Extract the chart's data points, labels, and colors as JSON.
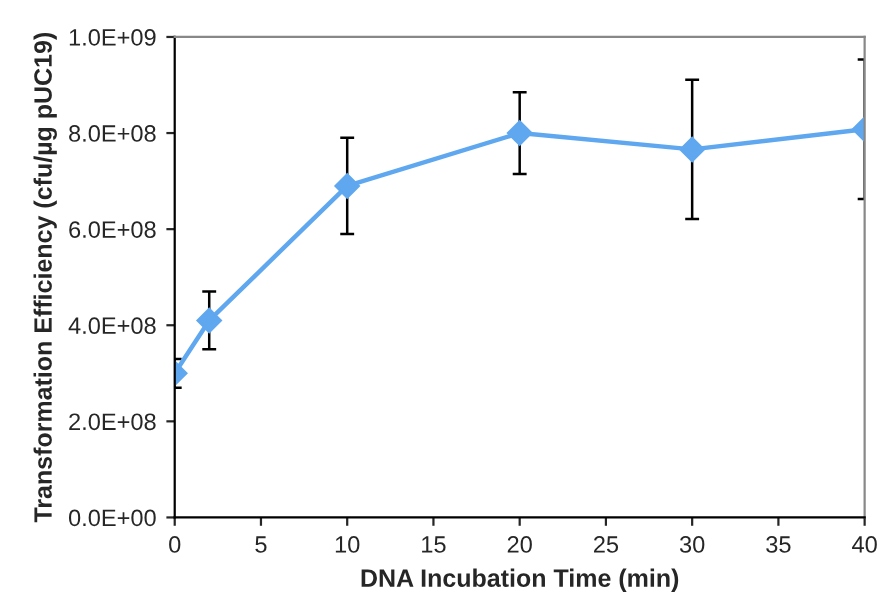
{
  "chart_data": {
    "type": "line",
    "xlabel": "DNA Incubation Time (min)",
    "ylabel": "Transformation Efficiency (cfu/µg pUC19)",
    "x": [
      0,
      2,
      10,
      20,
      30,
      40
    ],
    "series": [
      {
        "color": "#5fa8f0",
        "values": [
          300000000,
          410000000,
          690000000,
          800000000,
          766000000,
          808000000
        ],
        "errors": [
          30000000,
          60000000,
          100000000,
          85000000,
          145000000,
          145000000
        ]
      }
    ],
    "xlim": [
      0,
      40
    ],
    "xticks": [
      0,
      5,
      10,
      15,
      20,
      25,
      30,
      35,
      40
    ],
    "ylim": [
      0,
      1000000000
    ],
    "yticks": [
      {
        "value": 0,
        "label": "0.0E+00"
      },
      {
        "value": 200000000,
        "label": "2.0E+08"
      },
      {
        "value": 400000000,
        "label": "4.0E+08"
      },
      {
        "value": 600000000,
        "label": "6.0E+08"
      },
      {
        "value": 800000000,
        "label": "8.0E+08"
      },
      {
        "value": 1000000000,
        "label": "1.0E+09"
      }
    ],
    "marker": "diamond",
    "line_style": "solid",
    "grid": false,
    "legend": false
  }
}
